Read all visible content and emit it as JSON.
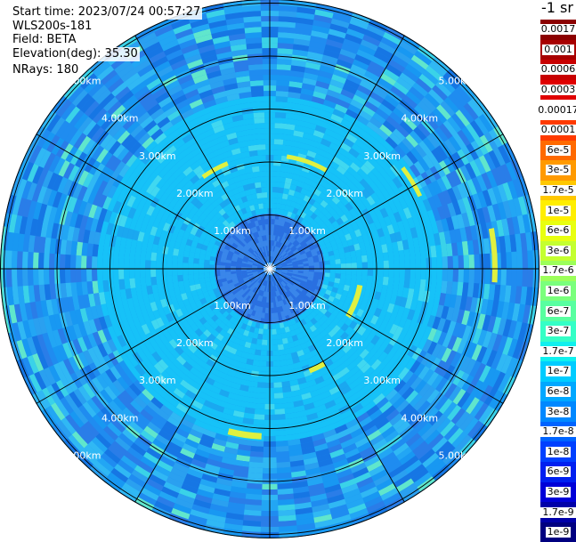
{
  "info": {
    "start_time": "Start time: 2023/07/24 00:57:27",
    "station": "WLS200s-181",
    "field": "Field: BETA",
    "elevation": "Elevation(deg): 35.30",
    "nrays": "NRays: 180"
  },
  "unit_label": "-1 sr",
  "range_rings": {
    "labels": [
      "1.00km",
      "2.00km",
      "3.00km",
      "4.00km",
      "5.00km"
    ]
  },
  "colorbar": {
    "entries": [
      {
        "label": "0.0017",
        "color": "#8b0000"
      },
      {
        "label": "0.001",
        "color": "#a80000"
      },
      {
        "label": "0.0006",
        "color": "#c80000"
      },
      {
        "label": "0.0003",
        "color": "#e00000"
      },
      {
        "label": "0.00017",
        "color": "#ffffff"
      },
      {
        "label": "0.0001",
        "color": "#ff3a00"
      },
      {
        "label": "6e-5",
        "color": "#ff6a00"
      },
      {
        "label": "3e-5",
        "color": "#ff9a00"
      },
      {
        "label": "1.7e-5",
        "color": "#ffc800"
      },
      {
        "label": "1e-5",
        "color": "#ffee00"
      },
      {
        "label": "6e-6",
        "color": "#e8ff10"
      },
      {
        "label": "3e-6",
        "color": "#c4ff30"
      },
      {
        "label": "1.7e-6",
        "color": "#9cff5a"
      },
      {
        "label": "1e-6",
        "color": "#7aff7c"
      },
      {
        "label": "6e-7",
        "color": "#58ffa0"
      },
      {
        "label": "3e-7",
        "color": "#34ffc6"
      },
      {
        "label": "1.7e-7",
        "color": "#10f0ee"
      },
      {
        "label": "1e-7",
        "color": "#00ccff"
      },
      {
        "label": "6e-8",
        "color": "#00a8ff"
      },
      {
        "label": "3e-8",
        "color": "#0088ff"
      },
      {
        "label": "1.7e-8",
        "color": "#0064ff"
      },
      {
        "label": "1e-8",
        "color": "#0040ff"
      },
      {
        "label": "6e-9",
        "color": "#0020f0"
      },
      {
        "label": "3e-9",
        "color": "#0000d8"
      },
      {
        "label": "1.7e-9",
        "color": "#0000a8"
      },
      {
        "label": "1e-9",
        "color": "#000080"
      }
    ]
  },
  "field_colors": {
    "background": "#1f8cf0",
    "inner_core": "#2a6fe0",
    "mid_band": "#1ab4f5",
    "streak": "#55e6d0",
    "highlight": "#e0f040"
  }
}
